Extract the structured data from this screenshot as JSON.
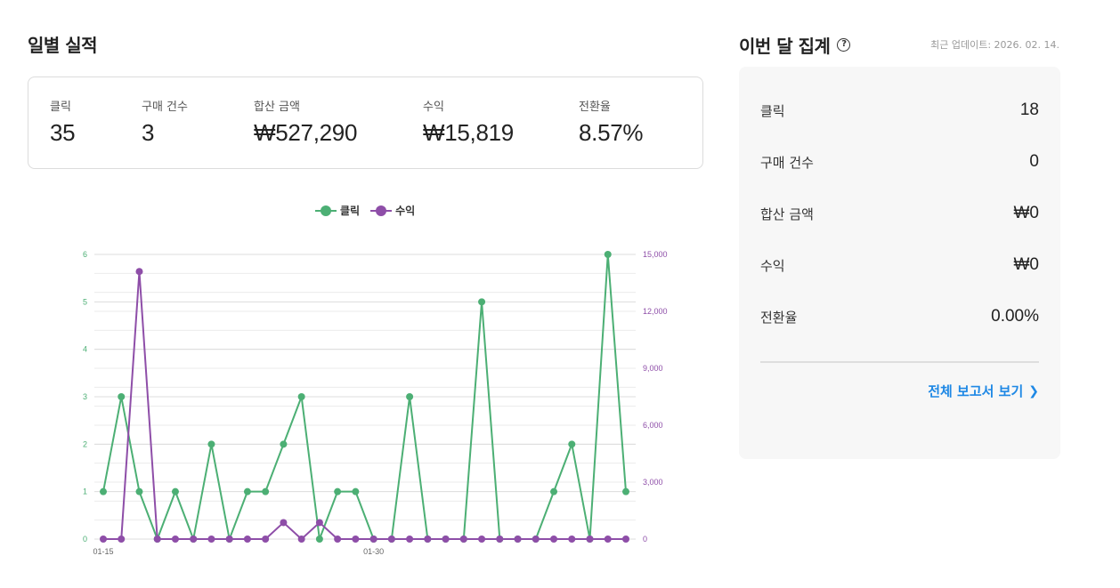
{
  "daily": {
    "title": "일별 실적",
    "stats": [
      {
        "label": "클릭",
        "value": "35"
      },
      {
        "label": "구매 건수",
        "value": "3"
      },
      {
        "label": "합산 금액",
        "value": "₩527,290"
      },
      {
        "label": "수익",
        "value": "₩15,819"
      },
      {
        "label": "전환율",
        "value": "8.57%"
      }
    ]
  },
  "monthly": {
    "title": "이번 달 집계",
    "help_icon": "question-circle-icon",
    "updated": "최근 업데이트: 2026. 02. 14.",
    "rows": [
      {
        "label": "클릭",
        "value": "18"
      },
      {
        "label": "구매 건수",
        "value": "0"
      },
      {
        "label": "합산 금액",
        "value": "₩0"
      },
      {
        "label": "수익",
        "value": "₩0"
      },
      {
        "label": "전환율",
        "value": "0.00%"
      }
    ],
    "report_link": "전체 보고서 보기"
  },
  "chart_data": {
    "type": "line",
    "legend_position": "top-center",
    "grid": true,
    "x": [
      "01-15",
      "01-16",
      "01-17",
      "01-18",
      "01-19",
      "01-20",
      "01-21",
      "01-22",
      "01-23",
      "01-24",
      "01-25",
      "01-26",
      "01-27",
      "01-28",
      "01-29",
      "01-30",
      "01-31",
      "02-01",
      "02-02",
      "02-03",
      "02-04",
      "02-05",
      "02-06",
      "02-07",
      "02-08",
      "02-09",
      "02-10",
      "02-11",
      "02-12",
      "02-13"
    ],
    "x_tick_labels": [
      "01-15",
      "01-30"
    ],
    "series": [
      {
        "name": "클릭",
        "axis": "left",
        "color": "#4caf74",
        "values": [
          1,
          3,
          1,
          0,
          1,
          0,
          2,
          0,
          1,
          1,
          2,
          3,
          0,
          1,
          1,
          0,
          0,
          3,
          0,
          0,
          0,
          5,
          0,
          0,
          0,
          1,
          2,
          0,
          6,
          1
        ]
      },
      {
        "name": "수익",
        "axis": "right",
        "color": "#8e4ea8",
        "values": [
          0,
          0,
          14100,
          0,
          0,
          0,
          0,
          0,
          0,
          0,
          870,
          0,
          870,
          0,
          0,
          0,
          0,
          0,
          0,
          0,
          0,
          0,
          0,
          0,
          0,
          0,
          0,
          0,
          0,
          0
        ]
      }
    ],
    "y_left": {
      "ticks": [
        0,
        1,
        2,
        3,
        4,
        5,
        6
      ],
      "ylim": [
        0,
        6
      ],
      "color": "#4caf74"
    },
    "y_right": {
      "ticks": [
        0,
        3000,
        6000,
        9000,
        12000,
        15000
      ],
      "tick_labels": [
        "0",
        "3,000",
        "6,000",
        "9,000",
        "12,000",
        "15,000"
      ],
      "ylim": [
        0,
        15000
      ],
      "color": "#8e4ea8"
    }
  }
}
